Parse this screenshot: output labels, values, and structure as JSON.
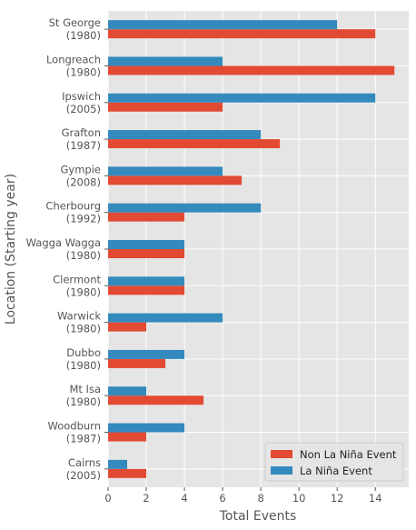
{
  "chart_data": {
    "type": "bar",
    "orientation": "horizontal",
    "categories": [
      [
        "St George",
        "(1980)"
      ],
      [
        "Longreach",
        "(1980)"
      ],
      [
        "Ipswich",
        "(2005)"
      ],
      [
        "Grafton",
        "(1987)"
      ],
      [
        "Gympie",
        "(2008)"
      ],
      [
        "Cherbourg",
        "(1992)"
      ],
      [
        "Wagga Wagga",
        "(1980)"
      ],
      [
        "Clermont",
        "(1980)"
      ],
      [
        "Warwick",
        "(1980)"
      ],
      [
        "Dubbo",
        "(1980)"
      ],
      [
        "Mt Isa",
        "(1980)"
      ],
      [
        "Woodburn",
        "(1987)"
      ],
      [
        "Cairns",
        "(2005)"
      ]
    ],
    "series": [
      {
        "name": "Non La Niña Event",
        "color": "#E24A33",
        "values": [
          14,
          15,
          6,
          9,
          7,
          4,
          4,
          4,
          2,
          3,
          5,
          2,
          2
        ]
      },
      {
        "name": "La Niña Event",
        "color": "#348ABD",
        "values": [
          12,
          6,
          14,
          8,
          6,
          8,
          4,
          4,
          6,
          4,
          2,
          4,
          1
        ]
      }
    ],
    "title": "",
    "xlabel": "Total Events",
    "ylabel": "Location (Starting year)",
    "xlim": [
      0,
      15.75
    ],
    "xticks": [
      0,
      2,
      4,
      6,
      8,
      10,
      12,
      14
    ],
    "grid": true,
    "style": "ggplot",
    "legend_position": "lower-right"
  }
}
